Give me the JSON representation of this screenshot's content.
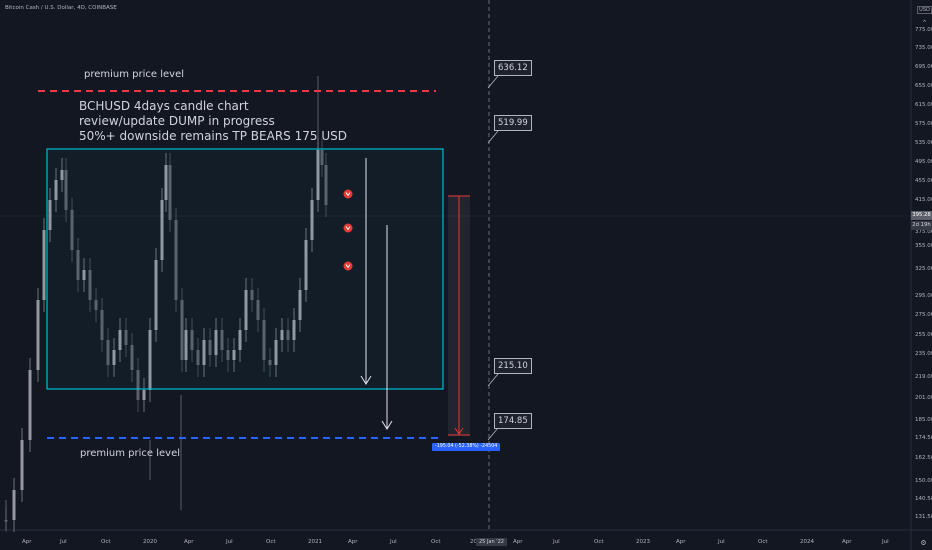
{
  "header": {
    "symbol_info": "Bitcoin Cash / U.S. Dollar, 4D, COINBASE",
    "currency_label": "USD"
  },
  "annotations": {
    "premium_top": "premium price level",
    "premium_bottom": "premium price level",
    "title_line1": "BCHUSD 4days candle chart",
    "title_line2": "review/update DUMP in progress",
    "title_line3": "50%+ downside remains TP BEARS 175 USD"
  },
  "callouts": {
    "c1": "636.12",
    "c2": "519.99",
    "c3": "215.10",
    "c4": "174.85"
  },
  "measure": {
    "label": "-195.04 (-52.38%) -24504"
  },
  "price_axis": {
    "ticks": [
      "775.00",
      "735.00",
      "695.00",
      "655.00",
      "615.00",
      "575.00",
      "535.00",
      "495.00",
      "455.00",
      "415.00",
      "375.00",
      "355.00",
      "325.00",
      "295.00",
      "275.00",
      "255.00",
      "235.00",
      "219.00",
      "201.00",
      "185.00",
      "174.50",
      "162.50",
      "150.00",
      "140.50",
      "131.50"
    ],
    "current_price": "395.28",
    "countdown": "2d 19h"
  },
  "time_axis": {
    "ticks": [
      "Apr",
      "Jul",
      "Oct",
      "2020",
      "Apr",
      "Jul",
      "Oct",
      "2021",
      "Apr",
      "Jul",
      "Oct",
      "20",
      "Apr",
      "Jul",
      "Oct",
      "2023",
      "Apr",
      "Jul",
      "Oct",
      "2024",
      "Apr",
      "Jul"
    ],
    "cursor_date": "25 Jan '22"
  },
  "colors": {
    "background": "#131722",
    "box": "#00bcd4",
    "premium_top": "#f23645",
    "premium_bottom": "#2962ff",
    "arrow": "#e0e3eb",
    "drop_red": "#e53935"
  },
  "icons": {
    "settings": "gear-icon",
    "collapse": "chevron-up-icon"
  }
}
